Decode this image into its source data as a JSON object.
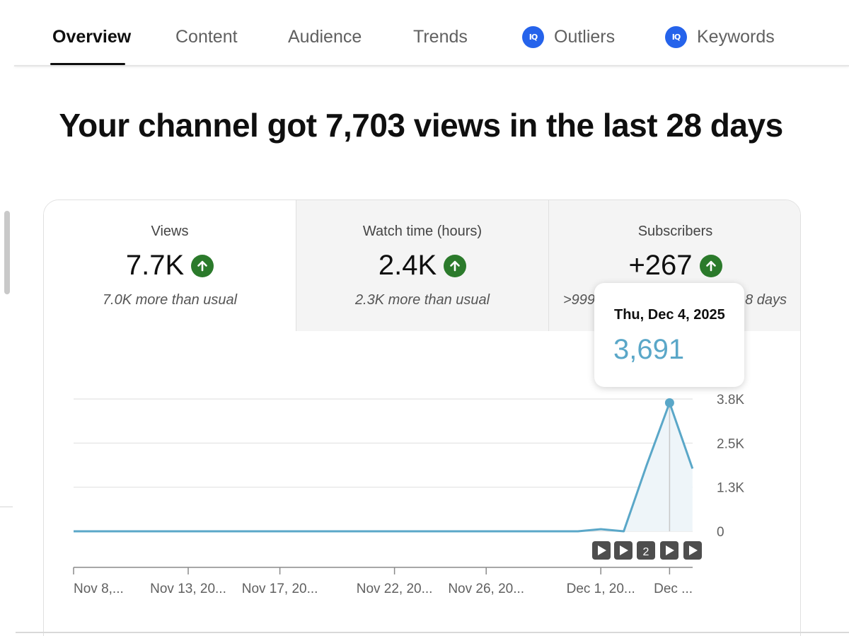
{
  "tabs": [
    {
      "label": "Overview",
      "active": true
    },
    {
      "label": "Content",
      "active": false
    },
    {
      "label": "Audience",
      "active": false
    },
    {
      "label": "Trends",
      "active": false
    },
    {
      "label": "Outliers",
      "active": false,
      "badge": "IQ"
    },
    {
      "label": "Keywords",
      "active": false,
      "badge": "IQ"
    }
  ],
  "headline": "Your channel got 7,703 views in the last 28 days",
  "metrics": [
    {
      "label": "Views",
      "value": "7.7K",
      "sub": "7.0K more than usual",
      "trend": "up"
    },
    {
      "label": "Watch time (hours)",
      "value": "2.4K",
      "sub": "2.3K more than usual",
      "trend": "up"
    },
    {
      "label": "Subscribers",
      "value": "+267",
      "sub_left": ">999",
      "sub_right": "8 days",
      "trend": "up"
    }
  ],
  "tooltip": {
    "date": "Thu, Dec 4, 2025",
    "value": "3,691"
  },
  "colors": {
    "line": "#5aa7c8",
    "area": "#eef5f9",
    "grid": "#e3e3e3",
    "trend_up": "#2b7a2b"
  },
  "chart_data": {
    "type": "line",
    "title": "Views",
    "y_ticks": [
      "3.8K",
      "2.5K",
      "1.3K",
      "0"
    ],
    "ylim": [
      0,
      3800
    ],
    "x_tick_labels": [
      "Nov 8,...",
      "Nov 13, 20...",
      "Nov 17, 20...",
      "Nov 22, 20...",
      "Nov 26, 20...",
      "Dec 1, 20...",
      "Dec ..."
    ],
    "x_tick_days": [
      0,
      5,
      9,
      14,
      18,
      23,
      26
    ],
    "series": [
      {
        "name": "Views",
        "days": [
          0,
          22,
          23,
          24,
          25,
          26,
          27
        ],
        "values": [
          0,
          0,
          60,
          0,
          1900,
          3691,
          1800
        ]
      }
    ],
    "highlight": {
      "day": 26,
      "value": 3691
    },
    "markers": [
      "▶",
      "▶",
      "2",
      "▶",
      "▶"
    ]
  }
}
